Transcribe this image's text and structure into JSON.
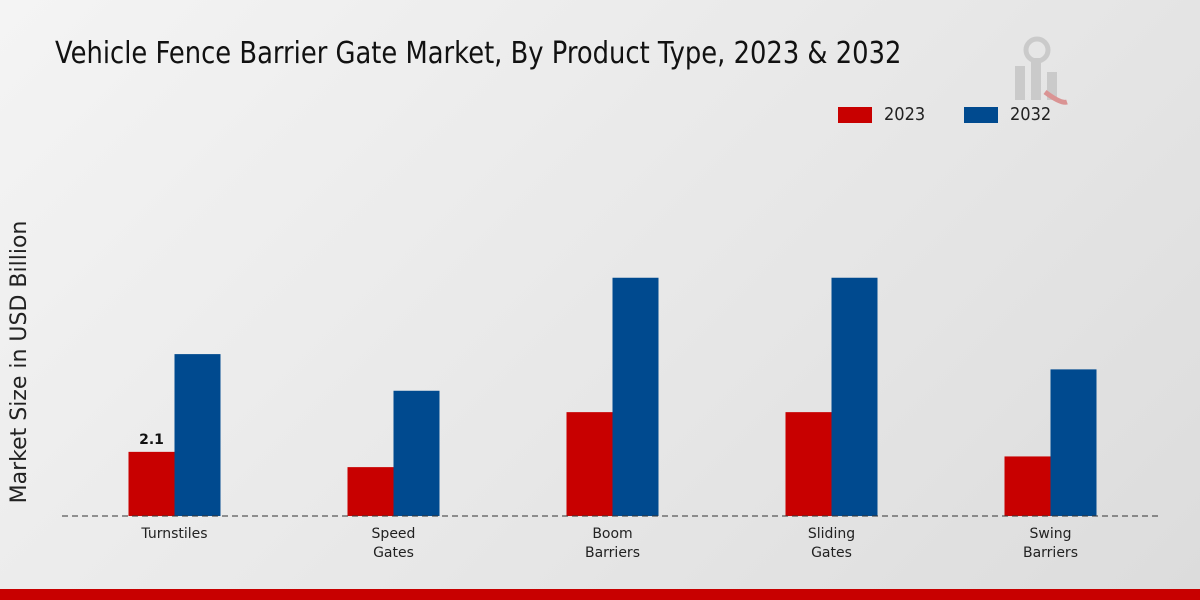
{
  "chart_data": {
    "type": "bar",
    "title": "Vehicle Fence Barrier Gate Market, By Product Type, 2023 & 2032",
    "xlabel": "",
    "ylabel": "Market Size in USD Billion",
    "categories": [
      [
        "Turnstiles"
      ],
      [
        "Speed",
        "Gates"
      ],
      [
        "Boom",
        "Barriers"
      ],
      [
        "Sliding",
        "Gates"
      ],
      [
        "Swing",
        "Barriers"
      ]
    ],
    "series": [
      {
        "name": "2023",
        "color": "#c80000",
        "values": [
          2.1,
          1.6,
          3.4,
          3.4,
          1.95
        ]
      },
      {
        "name": "2032",
        "color": "#004a8f",
        "values": [
          5.3,
          4.1,
          7.8,
          7.8,
          4.8
        ]
      }
    ],
    "data_labels": [
      {
        "series": 0,
        "index": 0,
        "text": "2.1"
      }
    ],
    "ylim": [
      0,
      11
    ],
    "grid": false,
    "legend_position": "top-right"
  },
  "brand": {
    "accent_bar_color": "#c80000"
  }
}
